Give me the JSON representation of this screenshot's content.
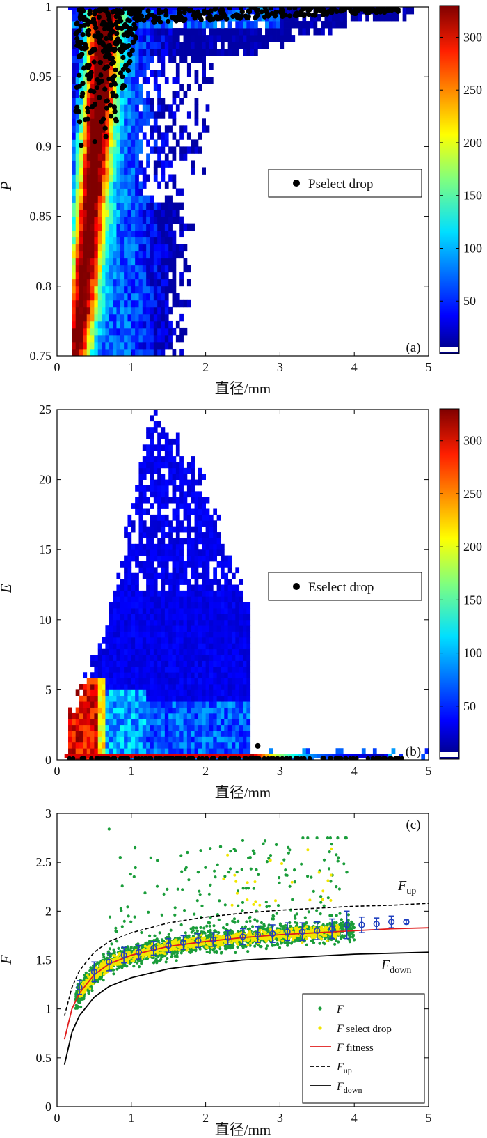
{
  "chart_data": [
    {
      "type": "heatmap",
      "panel_label": "(a)",
      "xlabel": "直径/mm",
      "ylabel": "P",
      "xlim": [
        0,
        5
      ],
      "ylim": [
        0.75,
        1
      ],
      "xticks": [
        "0",
        "1",
        "2",
        "3",
        "4",
        "5"
      ],
      "yticks": [
        "0.75",
        "0.8",
        "0.85",
        "0.9",
        "0.95",
        "1"
      ],
      "colorbar": {
        "min": 0,
        "max": 330,
        "ticks": [
          "50",
          "100",
          "150",
          "200",
          "250",
          "300"
        ]
      },
      "legend": {
        "label": "Pselect drop",
        "position": "center-right"
      },
      "select_drop_points_sample": [
        [
          0.3,
          0.98
        ],
        [
          0.4,
          0.97
        ],
        [
          0.5,
          0.96
        ],
        [
          0.6,
          0.99
        ],
        [
          0.8,
          0.995
        ],
        [
          1.5,
          0.998
        ],
        [
          2.5,
          0.999
        ],
        [
          3.2,
          0.995
        ],
        [
          3.8,
          0.996
        ],
        [
          4.3,
          0.997
        ],
        [
          4.6,
          0.995
        ]
      ]
    },
    {
      "type": "heatmap",
      "panel_label": "(b)",
      "xlabel": "直径/mm",
      "ylabel": "E",
      "xlim": [
        0,
        5
      ],
      "ylim": [
        0,
        25
      ],
      "xticks": [
        "0",
        "1",
        "2",
        "3",
        "4",
        "5"
      ],
      "yticks": [
        "0",
        "5",
        "10",
        "15",
        "20",
        "25"
      ],
      "colorbar": {
        "min": 0,
        "max": 330,
        "ticks": [
          "50",
          "100",
          "150",
          "200",
          "250",
          "300"
        ]
      },
      "legend": {
        "label": "Eselect drop",
        "position": "center-right"
      },
      "select_drop_points_sample": [
        [
          2.7,
          1.0
        ],
        [
          0.5,
          0.05
        ],
        [
          2.0,
          0.05
        ],
        [
          3.5,
          0.05
        ],
        [
          4.6,
          0.05
        ]
      ]
    },
    {
      "type": "scatter",
      "panel_label": "(c)",
      "xlabel": "直径/mm",
      "ylabel": "F",
      "xlim": [
        0,
        5
      ],
      "ylim": [
        0,
        3
      ],
      "xticks": [
        "0",
        "1",
        "2",
        "3",
        "4",
        "5"
      ],
      "yticks": [
        "0",
        "0.5",
        "1",
        "1.5",
        "2",
        "2.5",
        "3"
      ],
      "curve_labels": {
        "up": {
          "main": "F",
          "sub": "up"
        },
        "down": {
          "main": "F",
          "sub": "down"
        }
      },
      "legend": {
        "position": "bottom-right",
        "entries": [
          {
            "main": "F",
            "rest": "",
            "sub": "",
            "style": "green-dots",
            "color": "#1a9d3a"
          },
          {
            "main": "F",
            "rest": " select drop",
            "sub": "",
            "style": "yellow-dots",
            "color": "#f2e600"
          },
          {
            "main": "F",
            "rest": " fitness",
            "sub": "",
            "style": "red-line",
            "color": "#e01b1b"
          },
          {
            "main": "F",
            "rest": "",
            "sub": "up",
            "style": "black-dashed",
            "color": "#000000"
          },
          {
            "main": "F",
            "rest": "",
            "sub": "down",
            "style": "black-solid",
            "color": "#000000"
          }
        ]
      },
      "fitness_curve": {
        "x": [
          0.1,
          0.2,
          0.3,
          0.5,
          0.7,
          1.0,
          1.5,
          2.0,
          2.5,
          3.0,
          3.5,
          4.0,
          4.5,
          5.0
        ],
        "y": [
          0.69,
          1.0,
          1.16,
          1.35,
          1.46,
          1.55,
          1.64,
          1.69,
          1.73,
          1.76,
          1.78,
          1.8,
          1.82,
          1.83
        ]
      },
      "F_up": {
        "x": [
          0.1,
          0.2,
          0.3,
          0.5,
          0.7,
          1.0,
          1.5,
          2.0,
          2.5,
          3.0,
          3.5,
          4.0,
          4.5,
          5.0
        ],
        "y": [
          0.93,
          1.22,
          1.39,
          1.58,
          1.69,
          1.78,
          1.88,
          1.94,
          1.98,
          2.01,
          2.03,
          2.05,
          2.06,
          2.08
        ]
      },
      "F_down": {
        "x": [
          0.1,
          0.2,
          0.3,
          0.5,
          0.7,
          1.0,
          1.5,
          2.0,
          2.5,
          3.0,
          3.5,
          4.0,
          4.5,
          5.0
        ],
        "y": [
          0.43,
          0.76,
          0.93,
          1.12,
          1.23,
          1.32,
          1.41,
          1.46,
          1.5,
          1.52,
          1.54,
          1.56,
          1.57,
          1.58
        ]
      },
      "binned_means": {
        "x": [
          0.3,
          0.5,
          0.7,
          0.9,
          1.1,
          1.3,
          1.5,
          1.7,
          1.9,
          2.1,
          2.3,
          2.5,
          2.7,
          2.9,
          3.1,
          3.3,
          3.5,
          3.7,
          3.9,
          4.1,
          4.3,
          4.5,
          4.7
        ],
        "y": [
          1.22,
          1.38,
          1.48,
          1.55,
          1.58,
          1.62,
          1.65,
          1.68,
          1.7,
          1.71,
          1.73,
          1.74,
          1.76,
          1.77,
          1.79,
          1.79,
          1.8,
          1.82,
          1.86,
          1.86,
          1.87,
          1.89,
          1.89
        ],
        "err": [
          0.07,
          0.1,
          0.09,
          0.08,
          0.07,
          0.07,
          0.07,
          0.07,
          0.07,
          0.07,
          0.07,
          0.08,
          0.08,
          0.09,
          0.09,
          0.09,
          0.09,
          0.1,
          0.14,
          0.08,
          0.06,
          0.06,
          0.02
        ],
        "color": "#1f3fbf"
      },
      "outlier_points_sample": [
        [
          0.7,
          2.84
        ],
        [
          0.85,
          2.55
        ],
        [
          1.05,
          2.65
        ],
        [
          1.35,
          2.52
        ],
        [
          1.9,
          2.4
        ],
        [
          2.2,
          2.66
        ],
        [
          2.4,
          2.62
        ],
        [
          2.6,
          2.55
        ],
        [
          2.8,
          2.72
        ],
        [
          2.95,
          2.68
        ],
        [
          3.2,
          2.3
        ],
        [
          3.55,
          2.15
        ],
        [
          3.9,
          2.4
        ]
      ]
    }
  ]
}
